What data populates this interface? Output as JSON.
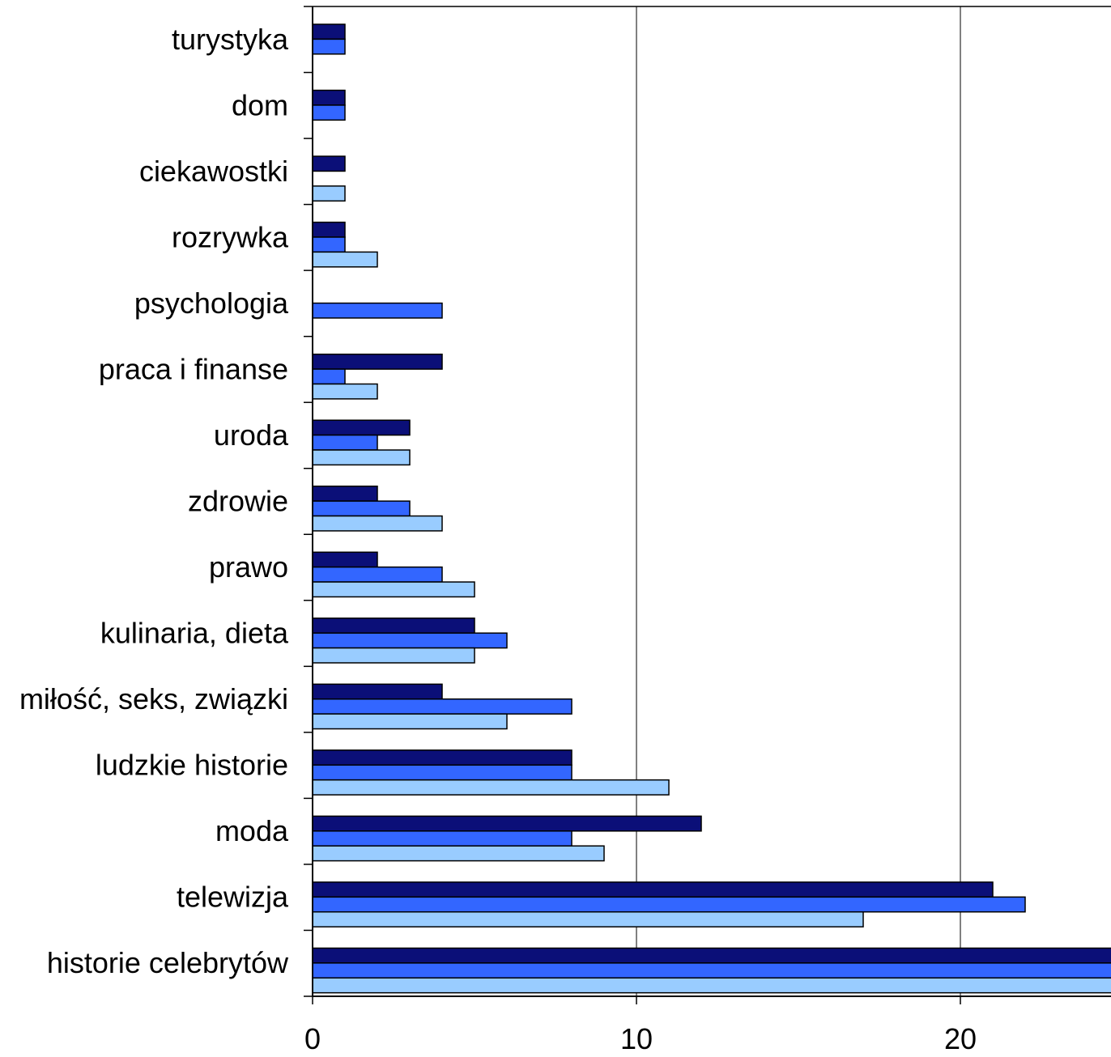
{
  "chart_data": {
    "type": "bar",
    "orientation": "horizontal",
    "categories": [
      "turystyka",
      "dom",
      "ciekawostki",
      "rozrywka",
      "psychologia",
      "praca i finanse",
      "uroda",
      "zdrowie",
      "prawo",
      "kulinaria, dieta",
      "miłość, seks, związki",
      "ludzkie historie",
      "moda",
      "telewizja",
      "historie celebrytów"
    ],
    "series": [
      {
        "color": "#0b0f78",
        "values": [
          1,
          1,
          1,
          1,
          0,
          4,
          3,
          2,
          2,
          5,
          4,
          8,
          12,
          21,
          25
        ]
      },
      {
        "color": "#3366ff",
        "values": [
          1,
          1,
          0,
          1,
          4,
          1,
          2,
          3,
          4,
          6,
          8,
          8,
          8,
          22,
          25
        ]
      },
      {
        "color": "#99ccff",
        "values": [
          0,
          0,
          1,
          2,
          0,
          2,
          3,
          4,
          5,
          5,
          6,
          11,
          9,
          17,
          25
        ]
      }
    ],
    "x_ticks": [
      "0",
      "10",
      "20"
    ],
    "xlim": [
      0,
      24.7
    ],
    "grid": true,
    "legend": "none"
  }
}
